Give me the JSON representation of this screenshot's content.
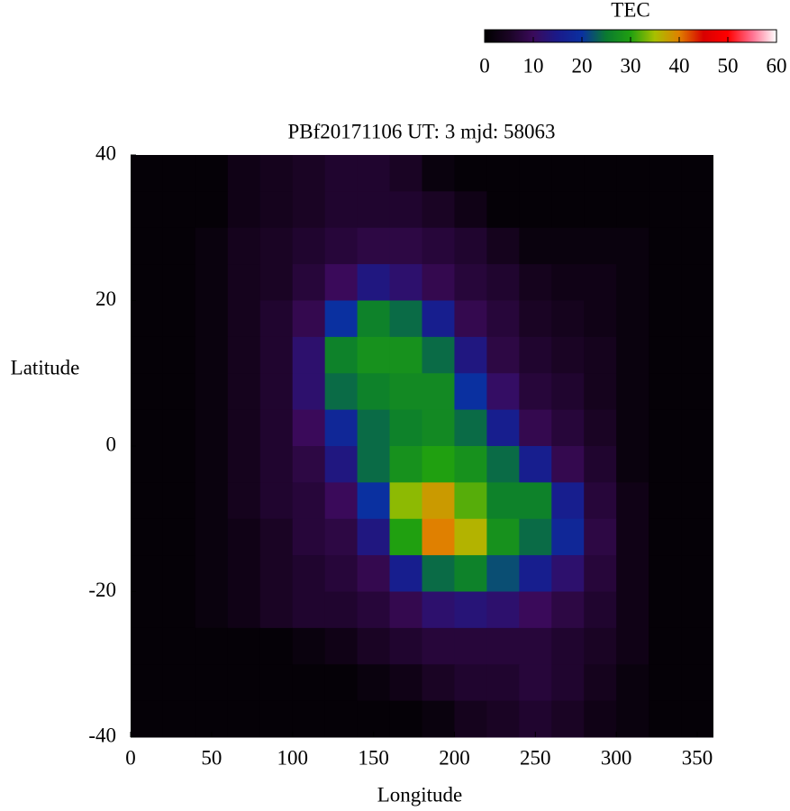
{
  "chart_data": {
    "type": "heatmap",
    "title": "PBf20171106  UT: 3  mjd: 58063",
    "x_label": "Longitude",
    "y_label": "Latitude",
    "x": [
      10,
      30,
      50,
      70,
      90,
      110,
      130,
      150,
      170,
      190,
      210,
      230,
      250,
      270,
      290,
      310,
      330,
      350
    ],
    "y": [
      37.5,
      32.5,
      27.5,
      22.5,
      17.5,
      12.5,
      7.5,
      2.5,
      -2.5,
      -7.5,
      -12.5,
      -17.5,
      -22.5,
      -27.5,
      -32.5,
      -37.5
    ],
    "values": [
      [
        1,
        1,
        1,
        3,
        4,
        5,
        6,
        6,
        5,
        2,
        1,
        1,
        1,
        1,
        1,
        1,
        1,
        1
      ],
      [
        1,
        1,
        1,
        3,
        4,
        5,
        6,
        6,
        6,
        5,
        3,
        1,
        1,
        1,
        1,
        1,
        1,
        1
      ],
      [
        1,
        1,
        2,
        4,
        5,
        6,
        7,
        8,
        8,
        7,
        6,
        4,
        2,
        2,
        2,
        2,
        1,
        1
      ],
      [
        1,
        1,
        2,
        4,
        5,
        7,
        10,
        14,
        12,
        9,
        7,
        6,
        4,
        3,
        3,
        2,
        1,
        1
      ],
      [
        1,
        1,
        2,
        4,
        6,
        9,
        20,
        26,
        24,
        16,
        9,
        7,
        5,
        4,
        3,
        2,
        1,
        1
      ],
      [
        1,
        1,
        2,
        4,
        6,
        12,
        26,
        28,
        28,
        24,
        14,
        8,
        6,
        5,
        4,
        2,
        1,
        1
      ],
      [
        1,
        1,
        2,
        4,
        6,
        12,
        24,
        26,
        27,
        27,
        20,
        11,
        7,
        6,
        4,
        2,
        1,
        1
      ],
      [
        1,
        1,
        2,
        4,
        6,
        10,
        18,
        24,
        26,
        27,
        24,
        16,
        9,
        7,
        5,
        2,
        1,
        1
      ],
      [
        1,
        1,
        2,
        4,
        6,
        8,
        14,
        24,
        28,
        30,
        28,
        24,
        16,
        9,
        6,
        2,
        1,
        1
      ],
      [
        1,
        1,
        2,
        4,
        6,
        7,
        10,
        20,
        34,
        38,
        32,
        26,
        26,
        16,
        7,
        3,
        1,
        1
      ],
      [
        1,
        1,
        2,
        3,
        5,
        7,
        8,
        14,
        30,
        40,
        36,
        28,
        24,
        18,
        8,
        3,
        1,
        1
      ],
      [
        1,
        1,
        2,
        3,
        5,
        6,
        7,
        9,
        16,
        24,
        26,
        22,
        16,
        12,
        7,
        3,
        1,
        1
      ],
      [
        1,
        1,
        2,
        3,
        5,
        6,
        6,
        7,
        9,
        12,
        13,
        12,
        10,
        8,
        6,
        3,
        1,
        1
      ],
      [
        1,
        1,
        1,
        1,
        1,
        2,
        3,
        5,
        6,
        7,
        7,
        7,
        7,
        6,
        5,
        3,
        1,
        1
      ],
      [
        1,
        1,
        1,
        1,
        1,
        1,
        1,
        2,
        3,
        5,
        6,
        6,
        7,
        6,
        4,
        2,
        1,
        1
      ],
      [
        1,
        1,
        1,
        1,
        1,
        1,
        1,
        1,
        1,
        2,
        4,
        5,
        6,
        5,
        3,
        2,
        1,
        1
      ]
    ],
    "xlim": [
      0,
      360
    ],
    "xticks": [
      0,
      50,
      100,
      150,
      200,
      250,
      300,
      350
    ],
    "ylim": [
      -40,
      40
    ],
    "yticks": [
      -40,
      -20,
      0,
      20,
      40
    ],
    "colorbar": {
      "label": "TEC",
      "lim": [
        0,
        60
      ],
      "ticks": [
        0,
        10,
        20,
        30,
        40,
        50,
        60
      ]
    },
    "colorscale": [
      "#000000",
      "#1a0424",
      "#3a0a5a",
      "#1a1a8a",
      "#0a30a0",
      "#0a7a30",
      "#20a010",
      "#a8c000",
      "#e08000",
      "#d80000",
      "#ff0000",
      "#ff7090",
      "#ffffff"
    ]
  }
}
